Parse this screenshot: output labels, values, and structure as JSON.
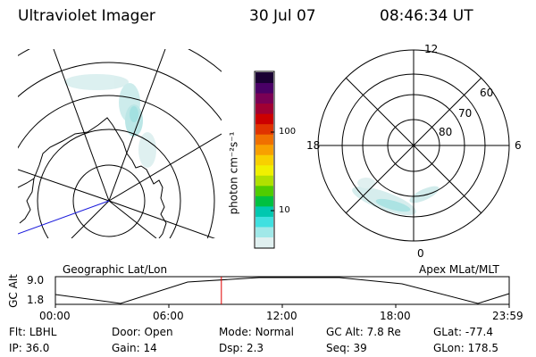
{
  "header": {
    "title": "Ultraviolet Imager",
    "date": "30 Jul 07",
    "time": "08:46:34 UT"
  },
  "left_panel": {
    "label": "Geographic Lat/Lon"
  },
  "right_panel": {
    "label": "Apex MLat/MLT",
    "mlt_labels": {
      "top": "12",
      "left": "18",
      "right": "6",
      "bottom": "0"
    },
    "lat_labels": [
      "60",
      "70",
      "80"
    ]
  },
  "colorbar": {
    "unit_label": "photon cm⁻²s⁻¹",
    "ticks": [
      "100",
      "10"
    ],
    "colors": [
      "#1a0033",
      "#4a0066",
      "#7a0055",
      "#a00033",
      "#cc0000",
      "#e03300",
      "#f07000",
      "#f8a000",
      "#f8d000",
      "#f0f000",
      "#b0e000",
      "#50cc00",
      "#00c040",
      "#00c8b0",
      "#40e0e0",
      "#a0e8e8",
      "#e0f0f0"
    ]
  },
  "timeline": {
    "y_axis_title": "GC Alt",
    "y_ticks": [
      "9.0",
      "1.8"
    ],
    "x_ticks": [
      "00:00",
      "06:00",
      "12:00",
      "18:00",
      "23:59"
    ],
    "marker_time_hours": 8.78
  },
  "info": {
    "rows": [
      [
        {
          "label": "Flt:",
          "value": "LBHL"
        },
        {
          "label": "Door:",
          "value": "Open"
        },
        {
          "label": "Mode:",
          "value": "Normal"
        },
        {
          "label": "GC Alt:",
          "value": "7.8 Re"
        },
        {
          "label": "GLat:",
          "value": "-77.4"
        }
      ],
      [
        {
          "label": "IP:",
          "value": "36.0"
        },
        {
          "label": "Gain:",
          "value": "14"
        },
        {
          "label": "Dsp:",
          "value": "2.3"
        },
        {
          "label": "Seq:",
          "value": "39"
        },
        {
          "label": "GLon:",
          "value": "178.5"
        }
      ]
    ]
  }
}
